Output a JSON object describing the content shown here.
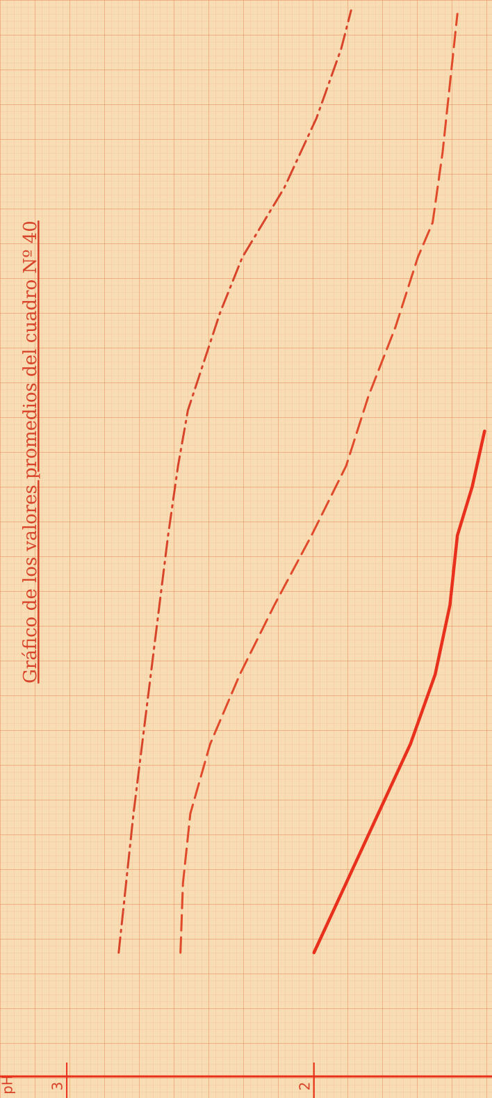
{
  "chart_data": {
    "type": "line",
    "title": "Gráfico de los valores promedios del cuadro Nº 40",
    "ylabel": "pH",
    "orientation": "rotated",
    "grid": true,
    "xlim": [
      -1.8,
      13.7
    ],
    "ylim": [
      3.27,
      1.28
    ],
    "yticks": [
      3,
      2
    ],
    "series": [
      {
        "color": "#e8301c",
        "style": "solid",
        "x": [
          0,
          1,
          2,
          3,
          4,
          5,
          6,
          6.7,
          7.5
        ],
        "values": [
          2.0,
          1.87,
          1.74,
          1.61,
          1.51,
          1.45,
          1.42,
          1.36,
          1.31
        ]
      },
      {
        "color": "#e04a2a",
        "style": "dashed",
        "x": [
          0,
          1,
          2,
          3,
          4,
          5,
          6,
          7,
          8,
          9,
          10,
          10.5,
          11.5,
          12.5,
          13.5
        ],
        "values": [
          2.54,
          2.53,
          2.5,
          2.42,
          2.3,
          2.16,
          2.01,
          1.87,
          1.78,
          1.67,
          1.58,
          1.52,
          1.48,
          1.45,
          1.42
        ]
      },
      {
        "color": "#d8442a",
        "style": "dashdot",
        "x": [
          0,
          2,
          4,
          6,
          7,
          7.8,
          9.2,
          10,
          11,
          12,
          13,
          13.55
        ],
        "values": [
          2.79,
          2.73,
          2.66,
          2.59,
          2.55,
          2.51,
          2.38,
          2.29,
          2.12,
          1.99,
          1.89,
          1.85
        ]
      }
    ]
  }
}
